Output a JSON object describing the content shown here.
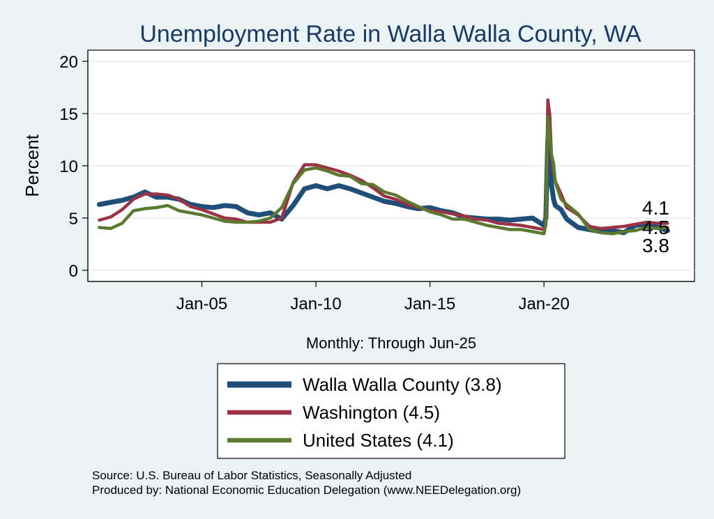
{
  "chart_data": {
    "type": "line",
    "title": "Unemployment Rate in Walla Walla  County, WA",
    "ylabel": "Percent",
    "xlabel": "Monthly: Through Jun-25",
    "ylim": [
      0,
      20
    ],
    "xlim": [
      2000,
      2026.6
    ],
    "yticks": [
      0,
      5,
      10,
      15,
      20
    ],
    "xticks": [
      {
        "value": 2005.0,
        "label": "Jan-05"
      },
      {
        "value": 2010.0,
        "label": "Jan-10"
      },
      {
        "value": 2015.0,
        "label": "Jan-15"
      },
      {
        "value": 2020.0,
        "label": "Jan-20"
      }
    ],
    "grid": true,
    "legend_position": "bottom",
    "series": [
      {
        "name": "Walla Walla  County (3.8)",
        "legend_label": "Walla Walla  County (3.8)",
        "end_label": "3.8",
        "color": "#1f4e79",
        "x": [
          2000.5,
          2001.0,
          2001.5,
          2002.0,
          2002.5,
          2003.0,
          2003.5,
          2004.0,
          2004.5,
          2005.0,
          2005.5,
          2006.0,
          2006.5,
          2007.0,
          2007.5,
          2008.0,
          2008.5,
          2009.0,
          2009.5,
          2010.0,
          2010.5,
          2011.0,
          2011.5,
          2012.0,
          2012.5,
          2013.0,
          2013.5,
          2014.0,
          2014.5,
          2015.0,
          2015.5,
          2016.0,
          2016.5,
          2017.0,
          2017.5,
          2018.0,
          2018.5,
          2019.0,
          2019.5,
          2020.0,
          2020.08,
          2020.17,
          2020.25,
          2020.33,
          2020.42,
          2020.5,
          2020.75,
          2021.0,
          2021.5,
          2022.0,
          2022.5,
          2023.0,
          2023.5,
          2024.0,
          2024.5,
          2025.0,
          2025.42
        ],
        "values": [
          6.3,
          6.5,
          6.7,
          7.0,
          7.5,
          7.0,
          7.0,
          6.8,
          6.3,
          6.1,
          6.0,
          6.2,
          6.1,
          5.5,
          5.3,
          5.5,
          4.9,
          6.2,
          7.8,
          8.1,
          7.8,
          8.1,
          7.8,
          7.4,
          7.0,
          6.6,
          6.4,
          6.1,
          5.9,
          6.0,
          5.7,
          5.5,
          5.1,
          5.0,
          4.9,
          4.9,
          4.8,
          4.9,
          5.0,
          4.3,
          5.0,
          12.5,
          10.0,
          8.2,
          6.8,
          6.2,
          5.8,
          4.9,
          4.1,
          3.9,
          3.7,
          3.8,
          3.6,
          4.3,
          4.4,
          4.1,
          3.8
        ]
      },
      {
        "name": "Washington (4.5)",
        "legend_label": "Washington (4.5)",
        "end_label": "4.5",
        "color": "#9b3344",
        "x": [
          2000.5,
          2001.0,
          2001.5,
          2002.0,
          2002.5,
          2003.0,
          2003.5,
          2004.0,
          2004.5,
          2005.0,
          2005.5,
          2006.0,
          2006.5,
          2007.0,
          2007.5,
          2008.0,
          2008.5,
          2009.0,
          2009.5,
          2010.0,
          2010.5,
          2011.0,
          2011.5,
          2012.0,
          2012.5,
          2013.0,
          2013.5,
          2014.0,
          2014.5,
          2015.0,
          2015.5,
          2016.0,
          2016.5,
          2017.0,
          2017.5,
          2018.0,
          2018.5,
          2019.0,
          2019.5,
          2020.0,
          2020.08,
          2020.17,
          2020.25,
          2020.33,
          2020.42,
          2020.5,
          2020.75,
          2021.0,
          2021.5,
          2022.0,
          2022.5,
          2023.0,
          2023.5,
          2024.0,
          2024.5,
          2025.0,
          2025.42
        ],
        "values": [
          4.8,
          5.1,
          5.8,
          6.8,
          7.3,
          7.3,
          7.2,
          6.8,
          6.1,
          5.8,
          5.4,
          5.0,
          4.9,
          4.6,
          4.6,
          4.6,
          5.0,
          8.4,
          10.1,
          10.1,
          9.8,
          9.5,
          9.1,
          8.6,
          7.9,
          7.1,
          6.8,
          6.3,
          6.0,
          5.7,
          5.6,
          5.4,
          5.2,
          4.9,
          4.8,
          4.5,
          4.4,
          4.3,
          4.1,
          3.9,
          4.3,
          16.3,
          15.0,
          11.0,
          9.3,
          8.5,
          7.3,
          6.0,
          5.3,
          4.2,
          4.0,
          4.1,
          4.2,
          4.4,
          4.6,
          4.5,
          4.5
        ]
      },
      {
        "name": "United States (4.1)",
        "legend_label": "United States (4.1)",
        "end_label": "4.1",
        "color": "#5a7a30",
        "x": [
          2000.5,
          2001.0,
          2001.5,
          2002.0,
          2002.5,
          2003.0,
          2003.5,
          2004.0,
          2004.5,
          2005.0,
          2005.5,
          2006.0,
          2006.5,
          2007.0,
          2007.5,
          2008.0,
          2008.5,
          2009.0,
          2009.5,
          2010.0,
          2010.5,
          2011.0,
          2011.5,
          2012.0,
          2012.5,
          2013.0,
          2013.5,
          2014.0,
          2014.5,
          2015.0,
          2015.5,
          2016.0,
          2016.5,
          2017.0,
          2017.5,
          2018.0,
          2018.5,
          2019.0,
          2019.5,
          2020.0,
          2020.08,
          2020.17,
          2020.25,
          2020.33,
          2020.42,
          2020.5,
          2020.75,
          2021.0,
          2021.5,
          2022.0,
          2022.5,
          2023.0,
          2023.5,
          2024.0,
          2024.5,
          2025.0,
          2025.42
        ],
        "values": [
          4.1,
          4.0,
          4.5,
          5.7,
          5.9,
          6.0,
          6.2,
          5.7,
          5.5,
          5.3,
          5.0,
          4.7,
          4.6,
          4.6,
          4.7,
          5.0,
          6.0,
          8.3,
          9.6,
          9.8,
          9.5,
          9.1,
          9.0,
          8.3,
          8.2,
          7.5,
          7.2,
          6.6,
          6.1,
          5.6,
          5.3,
          4.9,
          4.9,
          4.6,
          4.3,
          4.1,
          3.9,
          3.9,
          3.7,
          3.5,
          4.4,
          14.7,
          13.2,
          11.1,
          10.2,
          8.4,
          6.8,
          6.3,
          5.4,
          3.9,
          3.6,
          3.5,
          3.7,
          3.8,
          4.1,
          4.0,
          4.1
        ]
      }
    ],
    "source_lines": [
      "Source: U.S. Bureau of Labor Statistics, Seasonally Adjusted",
      "Produced by: National Economic Education Delegation (www.NEEDelegation.org)"
    ]
  }
}
